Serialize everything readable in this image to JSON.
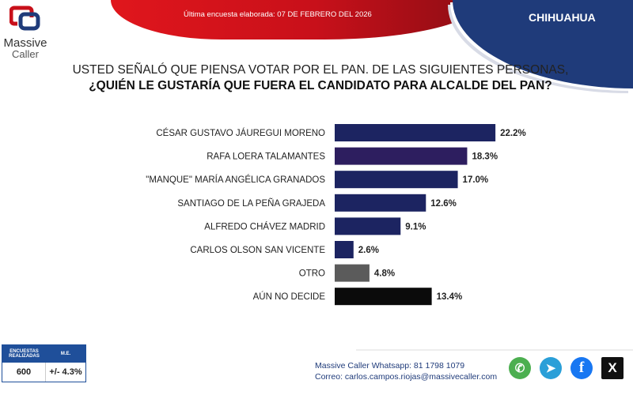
{
  "header": {
    "survey_date": "Última encuesta elaborada: 07 DE FEBRERO DEL 2026",
    "state": "CHIHUAHUA"
  },
  "logo": {
    "line1": "Massive",
    "line2": "Caller"
  },
  "question": {
    "line1": "USTED SEÑALÓ QUE PIENSA VOTAR POR EL PAN. DE LAS SIGUIENTES PERSONAS,",
    "line2": "¿QUIÉN LE GUSTARÍA QUE FUERA EL CANDIDATO PARA ALCALDE DEL PAN?"
  },
  "chart_data": {
    "type": "bar",
    "orientation": "horizontal",
    "categories": [
      "CÉSAR GUSTAVO JÁUREGUI MORENO",
      "RAFA LOERA TALAMANTES",
      "\"MANQUE\" MARÍA ANGÉLICA GRANADOS",
      "SANTIAGO DE LA PEÑA GRAJEDA",
      "ALFREDO CHÁVEZ MADRID",
      "CARLOS OLSON SAN VICENTE",
      "OTRO",
      "AÚN NO DECIDE"
    ],
    "values": [
      22.2,
      18.3,
      17.0,
      12.6,
      9.1,
      2.6,
      4.8,
      13.4
    ],
    "labels": [
      "22.2%",
      "18.3%",
      "17.0%",
      "12.6%",
      "9.1%",
      "2.6%",
      "4.8%",
      "13.4%"
    ],
    "colors": [
      "#1c2461",
      "#2d1e5f",
      "#1c2461",
      "#1c2461",
      "#1c2461",
      "#1c2461",
      "#5b5b5b",
      "#0b0b0b"
    ],
    "grid": false
  },
  "methodology": {
    "col1": "ENCUESTAS REALIZADAS",
    "col2": "M.E.",
    "sample": "600",
    "margin": "+/- 4.3%"
  },
  "contact": {
    "whatsapp": "Massive Caller Whatsapp: 81 1798 1079",
    "email": "Correo: carlos.campos.riojas@massivecaller.com"
  },
  "social": [
    {
      "icon": "whatsapp-icon",
      "color": "#4caf50"
    },
    {
      "icon": "telegram-icon",
      "color": "#2a9fd8"
    },
    {
      "icon": "facebook-icon",
      "color": "#1877f2"
    },
    {
      "icon": "x-icon",
      "color": "#111111"
    }
  ]
}
